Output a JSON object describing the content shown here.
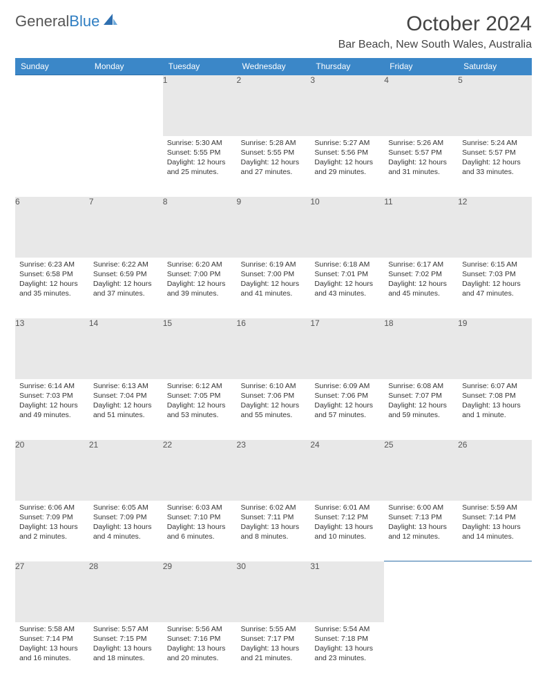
{
  "logo": {
    "text1": "General",
    "text2": "Blue"
  },
  "title": "October 2024",
  "location": "Bar Beach, New South Wales, Australia",
  "colors": {
    "header_bg": "#3b87c8",
    "header_text": "#ffffff",
    "daynum_bg": "#e8e8e8",
    "row_border": "#2d6ea8",
    "body_text": "#333333"
  },
  "typography": {
    "title_fontsize": 30,
    "location_fontsize": 16,
    "header_fontsize": 12,
    "daynum_fontsize": 12,
    "cell_fontsize": 10.5
  },
  "day_headers": [
    "Sunday",
    "Monday",
    "Tuesday",
    "Wednesday",
    "Thursday",
    "Friday",
    "Saturday"
  ],
  "weeks": [
    {
      "days": [
        {
          "n": "",
          "sunrise": "",
          "sunset": "",
          "daylight": ""
        },
        {
          "n": "",
          "sunrise": "",
          "sunset": "",
          "daylight": ""
        },
        {
          "n": "1",
          "sunrise": "Sunrise: 5:30 AM",
          "sunset": "Sunset: 5:55 PM",
          "daylight": "Daylight: 12 hours and 25 minutes."
        },
        {
          "n": "2",
          "sunrise": "Sunrise: 5:28 AM",
          "sunset": "Sunset: 5:55 PM",
          "daylight": "Daylight: 12 hours and 27 minutes."
        },
        {
          "n": "3",
          "sunrise": "Sunrise: 5:27 AM",
          "sunset": "Sunset: 5:56 PM",
          "daylight": "Daylight: 12 hours and 29 minutes."
        },
        {
          "n": "4",
          "sunrise": "Sunrise: 5:26 AM",
          "sunset": "Sunset: 5:57 PM",
          "daylight": "Daylight: 12 hours and 31 minutes."
        },
        {
          "n": "5",
          "sunrise": "Sunrise: 5:24 AM",
          "sunset": "Sunset: 5:57 PM",
          "daylight": "Daylight: 12 hours and 33 minutes."
        }
      ]
    },
    {
      "days": [
        {
          "n": "6",
          "sunrise": "Sunrise: 6:23 AM",
          "sunset": "Sunset: 6:58 PM",
          "daylight": "Daylight: 12 hours and 35 minutes."
        },
        {
          "n": "7",
          "sunrise": "Sunrise: 6:22 AM",
          "sunset": "Sunset: 6:59 PM",
          "daylight": "Daylight: 12 hours and 37 minutes."
        },
        {
          "n": "8",
          "sunrise": "Sunrise: 6:20 AM",
          "sunset": "Sunset: 7:00 PM",
          "daylight": "Daylight: 12 hours and 39 minutes."
        },
        {
          "n": "9",
          "sunrise": "Sunrise: 6:19 AM",
          "sunset": "Sunset: 7:00 PM",
          "daylight": "Daylight: 12 hours and 41 minutes."
        },
        {
          "n": "10",
          "sunrise": "Sunrise: 6:18 AM",
          "sunset": "Sunset: 7:01 PM",
          "daylight": "Daylight: 12 hours and 43 minutes."
        },
        {
          "n": "11",
          "sunrise": "Sunrise: 6:17 AM",
          "sunset": "Sunset: 7:02 PM",
          "daylight": "Daylight: 12 hours and 45 minutes."
        },
        {
          "n": "12",
          "sunrise": "Sunrise: 6:15 AM",
          "sunset": "Sunset: 7:03 PM",
          "daylight": "Daylight: 12 hours and 47 minutes."
        }
      ]
    },
    {
      "days": [
        {
          "n": "13",
          "sunrise": "Sunrise: 6:14 AM",
          "sunset": "Sunset: 7:03 PM",
          "daylight": "Daylight: 12 hours and 49 minutes."
        },
        {
          "n": "14",
          "sunrise": "Sunrise: 6:13 AM",
          "sunset": "Sunset: 7:04 PM",
          "daylight": "Daylight: 12 hours and 51 minutes."
        },
        {
          "n": "15",
          "sunrise": "Sunrise: 6:12 AM",
          "sunset": "Sunset: 7:05 PM",
          "daylight": "Daylight: 12 hours and 53 minutes."
        },
        {
          "n": "16",
          "sunrise": "Sunrise: 6:10 AM",
          "sunset": "Sunset: 7:06 PM",
          "daylight": "Daylight: 12 hours and 55 minutes."
        },
        {
          "n": "17",
          "sunrise": "Sunrise: 6:09 AM",
          "sunset": "Sunset: 7:06 PM",
          "daylight": "Daylight: 12 hours and 57 minutes."
        },
        {
          "n": "18",
          "sunrise": "Sunrise: 6:08 AM",
          "sunset": "Sunset: 7:07 PM",
          "daylight": "Daylight: 12 hours and 59 minutes."
        },
        {
          "n": "19",
          "sunrise": "Sunrise: 6:07 AM",
          "sunset": "Sunset: 7:08 PM",
          "daylight": "Daylight: 13 hours and 1 minute."
        }
      ]
    },
    {
      "days": [
        {
          "n": "20",
          "sunrise": "Sunrise: 6:06 AM",
          "sunset": "Sunset: 7:09 PM",
          "daylight": "Daylight: 13 hours and 2 minutes."
        },
        {
          "n": "21",
          "sunrise": "Sunrise: 6:05 AM",
          "sunset": "Sunset: 7:09 PM",
          "daylight": "Daylight: 13 hours and 4 minutes."
        },
        {
          "n": "22",
          "sunrise": "Sunrise: 6:03 AM",
          "sunset": "Sunset: 7:10 PM",
          "daylight": "Daylight: 13 hours and 6 minutes."
        },
        {
          "n": "23",
          "sunrise": "Sunrise: 6:02 AM",
          "sunset": "Sunset: 7:11 PM",
          "daylight": "Daylight: 13 hours and 8 minutes."
        },
        {
          "n": "24",
          "sunrise": "Sunrise: 6:01 AM",
          "sunset": "Sunset: 7:12 PM",
          "daylight": "Daylight: 13 hours and 10 minutes."
        },
        {
          "n": "25",
          "sunrise": "Sunrise: 6:00 AM",
          "sunset": "Sunset: 7:13 PM",
          "daylight": "Daylight: 13 hours and 12 minutes."
        },
        {
          "n": "26",
          "sunrise": "Sunrise: 5:59 AM",
          "sunset": "Sunset: 7:14 PM",
          "daylight": "Daylight: 13 hours and 14 minutes."
        }
      ]
    },
    {
      "days": [
        {
          "n": "27",
          "sunrise": "Sunrise: 5:58 AM",
          "sunset": "Sunset: 7:14 PM",
          "daylight": "Daylight: 13 hours and 16 minutes."
        },
        {
          "n": "28",
          "sunrise": "Sunrise: 5:57 AM",
          "sunset": "Sunset: 7:15 PM",
          "daylight": "Daylight: 13 hours and 18 minutes."
        },
        {
          "n": "29",
          "sunrise": "Sunrise: 5:56 AM",
          "sunset": "Sunset: 7:16 PM",
          "daylight": "Daylight: 13 hours and 20 minutes."
        },
        {
          "n": "30",
          "sunrise": "Sunrise: 5:55 AM",
          "sunset": "Sunset: 7:17 PM",
          "daylight": "Daylight: 13 hours and 21 minutes."
        },
        {
          "n": "31",
          "sunrise": "Sunrise: 5:54 AM",
          "sunset": "Sunset: 7:18 PM",
          "daylight": "Daylight: 13 hours and 23 minutes."
        },
        {
          "n": "",
          "sunrise": "",
          "sunset": "",
          "daylight": ""
        },
        {
          "n": "",
          "sunrise": "",
          "sunset": "",
          "daylight": ""
        }
      ]
    }
  ]
}
